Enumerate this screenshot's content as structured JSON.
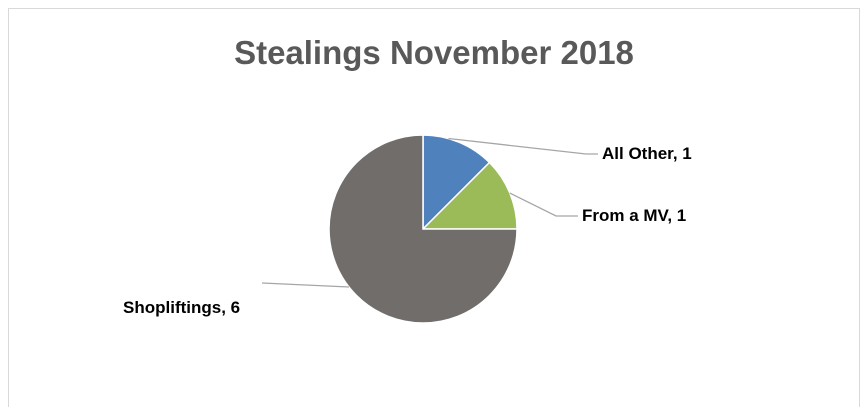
{
  "chart_data": {
    "type": "pie",
    "title": "Stealings November 2018",
    "slices": [
      {
        "label": "All Other",
        "value": 1,
        "color": "#4f81bd",
        "display": "All Other, 1"
      },
      {
        "label": "From a MV",
        "value": 1,
        "color": "#9bbb59",
        "display": "From a MV, 1"
      },
      {
        "label": "Shopliftings",
        "value": 6,
        "color": "#716d6b",
        "display": "Shopliftings, 6"
      }
    ],
    "legend": "none",
    "data_labels": "outside with leader lines"
  }
}
